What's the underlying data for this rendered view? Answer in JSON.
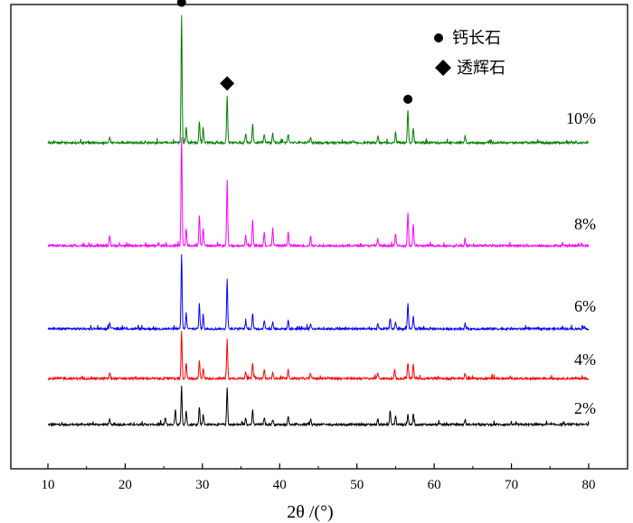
{
  "chart_data": {
    "type": "line",
    "xlabel": "2θ /(°)",
    "xlim": [
      10,
      80
    ],
    "xticks": [
      10,
      20,
      30,
      40,
      50,
      60,
      70,
      80
    ],
    "legend": {
      "placement": "top-right",
      "items": [
        {
          "marker": "circle",
          "label": "钙长石"
        },
        {
          "marker": "diamond",
          "label": "透辉石"
        }
      ]
    },
    "series": [
      {
        "name": "2%",
        "color": "#000000",
        "peaks": [
          [
            18.0,
            3
          ],
          [
            25.2,
            4
          ],
          [
            26.5,
            9
          ],
          [
            27.3,
            22
          ],
          [
            27.9,
            8
          ],
          [
            29.6,
            10
          ],
          [
            30.1,
            6
          ],
          [
            33.2,
            21
          ],
          [
            35.6,
            4
          ],
          [
            36.5,
            8
          ],
          [
            38.0,
            4
          ],
          [
            39.1,
            3
          ],
          [
            41.1,
            5
          ],
          [
            44.0,
            3
          ],
          [
            52.7,
            3
          ],
          [
            54.3,
            8
          ],
          [
            55.0,
            5
          ],
          [
            56.6,
            6
          ],
          [
            57.3,
            6
          ],
          [
            64.0,
            3
          ]
        ]
      },
      {
        "name": "4%",
        "color": "#ff0000",
        "peaks": [
          [
            18.0,
            3
          ],
          [
            27.3,
            27
          ],
          [
            27.9,
            9
          ],
          [
            29.6,
            10
          ],
          [
            30.1,
            6
          ],
          [
            33.2,
            22
          ],
          [
            35.6,
            4
          ],
          [
            36.5,
            9
          ],
          [
            38.0,
            5
          ],
          [
            39.1,
            4
          ],
          [
            41.1,
            5
          ],
          [
            44.0,
            3
          ],
          [
            52.7,
            3
          ],
          [
            54.9,
            5
          ],
          [
            56.6,
            9
          ],
          [
            57.3,
            8
          ],
          [
            64.0,
            3
          ]
        ]
      },
      {
        "name": "6%",
        "color": "#0000ff",
        "peaks": [
          [
            18.0,
            4
          ],
          [
            27.3,
            42
          ],
          [
            27.9,
            9
          ],
          [
            29.6,
            14
          ],
          [
            30.1,
            8
          ],
          [
            33.2,
            28
          ],
          [
            35.6,
            4
          ],
          [
            36.5,
            9
          ],
          [
            38.0,
            5
          ],
          [
            39.1,
            4
          ],
          [
            41.1,
            5
          ],
          [
            44.0,
            3
          ],
          [
            52.7,
            3
          ],
          [
            54.3,
            6
          ],
          [
            55.0,
            4
          ],
          [
            56.6,
            14
          ],
          [
            57.3,
            7
          ],
          [
            64.0,
            3
          ]
        ]
      },
      {
        "name": "8%",
        "color": "#ff00ff",
        "peaks": [
          [
            18.0,
            6
          ],
          [
            27.3,
            62
          ],
          [
            27.9,
            10
          ],
          [
            29.6,
            17
          ],
          [
            30.1,
            10
          ],
          [
            33.2,
            37
          ],
          [
            35.6,
            6
          ],
          [
            36.5,
            15
          ],
          [
            38.0,
            8
          ],
          [
            39.1,
            10
          ],
          [
            41.1,
            8
          ],
          [
            44.0,
            5
          ],
          [
            52.7,
            4
          ],
          [
            55.0,
            7
          ],
          [
            56.6,
            19
          ],
          [
            57.3,
            12
          ],
          [
            64.0,
            4
          ]
        ]
      },
      {
        "name": "10%",
        "color": "#008000",
        "peaks": [
          [
            18.0,
            3
          ],
          [
            27.3,
            73
          ],
          [
            27.9,
            9
          ],
          [
            29.6,
            12
          ],
          [
            30.1,
            8
          ],
          [
            33.2,
            27
          ],
          [
            35.6,
            5
          ],
          [
            36.5,
            11
          ],
          [
            38.0,
            5
          ],
          [
            39.1,
            5
          ],
          [
            41.1,
            5
          ],
          [
            44.0,
            3
          ],
          [
            52.7,
            4
          ],
          [
            55.0,
            6
          ],
          [
            56.6,
            18
          ],
          [
            57.3,
            8
          ],
          [
            64.0,
            4
          ]
        ]
      }
    ],
    "markers": [
      {
        "type": "circle",
        "x": 27.3,
        "series": "10%"
      },
      {
        "type": "diamond",
        "x": 33.2,
        "series": "10%"
      },
      {
        "type": "circle",
        "x": 56.6,
        "series": "10%"
      }
    ]
  }
}
